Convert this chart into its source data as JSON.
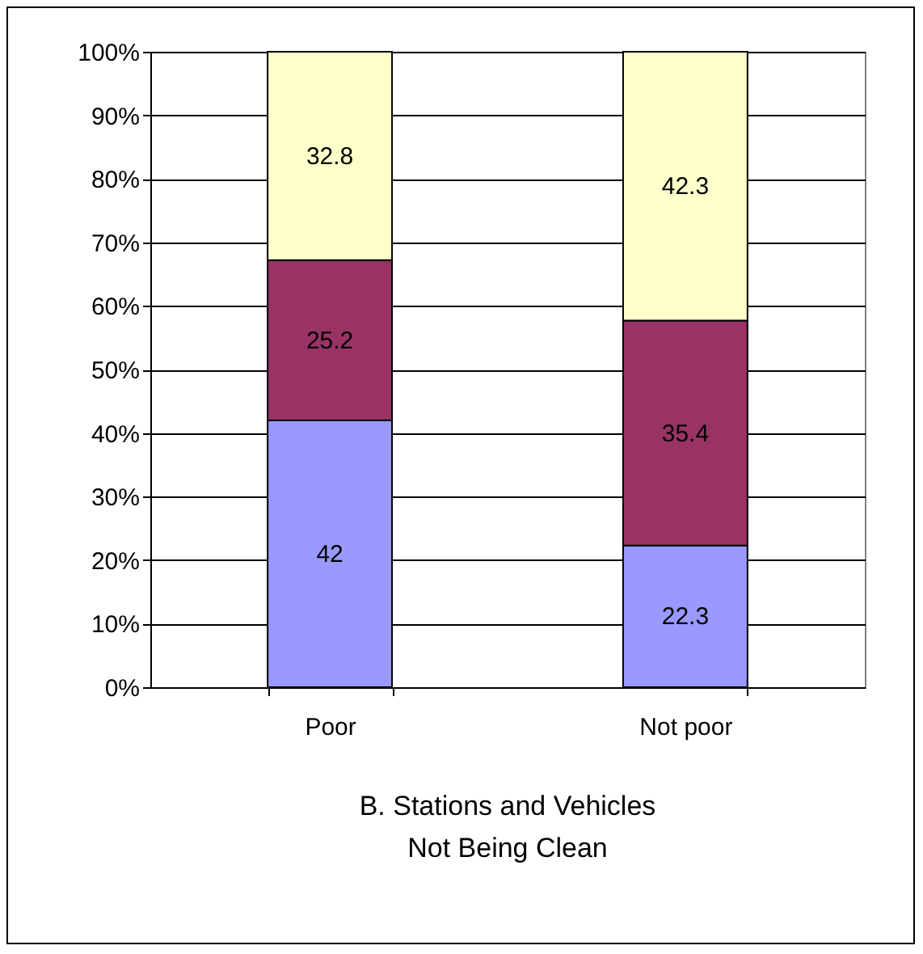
{
  "chart_data": {
    "type": "bar",
    "title": "B. Stations and Vehicles\nNot Being Clean",
    "categories": [
      "Poor",
      "Not poor"
    ],
    "stacked": true,
    "data_labels": true,
    "grid": "y",
    "legend": false,
    "series": [
      {
        "color": "#9999ff",
        "values": [
          42,
          22.3
        ]
      },
      {
        "color": "#993366",
        "values": [
          25.2,
          35.4
        ]
      },
      {
        "color": "#ffffcc",
        "values": [
          32.8,
          42.3
        ]
      }
    ],
    "ylim": [
      0,
      100
    ],
    "yticks": [
      {
        "value": 0,
        "label": "0%"
      },
      {
        "value": 10,
        "label": "10%"
      },
      {
        "value": 20,
        "label": "20%"
      },
      {
        "value": 30,
        "label": "30%"
      },
      {
        "value": 40,
        "label": "40%"
      },
      {
        "value": 50,
        "label": "50%"
      },
      {
        "value": 60,
        "label": "60%"
      },
      {
        "value": 70,
        "label": "70%"
      },
      {
        "value": 80,
        "label": "80%"
      },
      {
        "value": 90,
        "label": "90%"
      },
      {
        "value": 100,
        "label": "100%"
      }
    ]
  }
}
